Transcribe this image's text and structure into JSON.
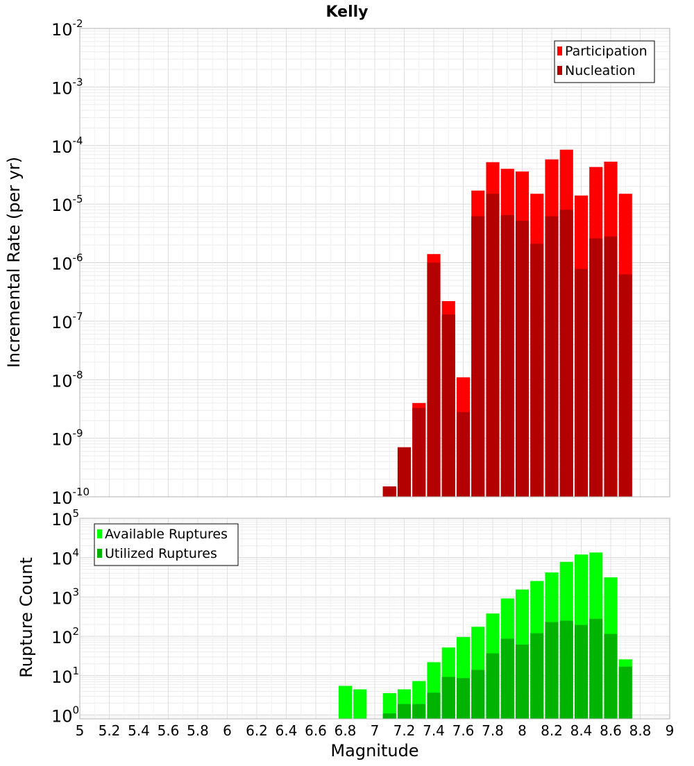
{
  "chart_data": [
    {
      "type": "bar",
      "title": "Kelly",
      "xlabel": "",
      "ylabel": "Incremental Rate (per yr)",
      "yscale": "log",
      "ylim": [
        1e-10,
        0.01
      ],
      "xlim": [
        5,
        9
      ],
      "grid": true,
      "legend_position": "top-right",
      "y_ticks": [
        {
          "base": "10",
          "exp": "-10"
        },
        {
          "base": "10",
          "exp": "-9"
        },
        {
          "base": "10",
          "exp": "-8"
        },
        {
          "base": "10",
          "exp": "-7"
        },
        {
          "base": "10",
          "exp": "-6"
        },
        {
          "base": "10",
          "exp": "-5"
        },
        {
          "base": "10",
          "exp": "-4"
        },
        {
          "base": "10",
          "exp": "-3"
        },
        {
          "base": "10",
          "exp": "-2"
        }
      ],
      "x": [
        7.1,
        7.2,
        7.3,
        7.4,
        7.5,
        7.6,
        7.7,
        7.8,
        7.9,
        8.0,
        8.1,
        8.2,
        8.3,
        8.4,
        8.5,
        8.6,
        8.7,
        8.8
      ],
      "series": [
        {
          "name": "Participation",
          "color": "#ff0000",
          "values": [
            1.5e-10,
            7e-10,
            4e-09,
            1.4e-06,
            2.2e-07,
            1.1e-08,
            1.7e-05,
            5.2e-05,
            4e-05,
            3.6e-05,
            1.5e-05,
            5.8e-05,
            8.5e-05,
            1.4e-05,
            4.3e-05,
            5.3e-05,
            1.5e-05,
            5e-11
          ]
        },
        {
          "name": "Nucleation",
          "color": "#b30000",
          "values": [
            1.5e-10,
            7e-10,
            3.3e-09,
            1e-06,
            1.3e-07,
            2.8e-09,
            6.2e-06,
            1.5e-05,
            6.5e-06,
            5.2e-06,
            2.1e-06,
            6.2e-06,
            8e-06,
            7.8e-07,
            2.6e-06,
            2.8e-06,
            6.3e-07,
            5e-11
          ]
        }
      ]
    },
    {
      "type": "bar",
      "title": "",
      "xlabel": "Magnitude",
      "ylabel": "Rupture Count",
      "yscale": "log",
      "ylim": [
        0.8,
        100000
      ],
      "xlim": [
        5,
        9
      ],
      "grid": true,
      "legend_position": "top-left",
      "y_ticks": [
        {
          "base": "10",
          "exp": "0",
          "value": 1
        },
        {
          "base": "10",
          "exp": "1",
          "value": 10
        },
        {
          "base": "10",
          "exp": "2",
          "value": 100
        },
        {
          "base": "10",
          "exp": "3",
          "value": 1000
        },
        {
          "base": "10",
          "exp": "4",
          "value": 10000
        },
        {
          "base": "10",
          "exp": "5",
          "value": 100000
        }
      ],
      "x_ticks": [
        "5",
        "5.2",
        "5.4",
        "5.6",
        "5.8",
        "6",
        "6.2",
        "6.4",
        "6.6",
        "6.8",
        "7",
        "7.2",
        "7.4",
        "7.6",
        "7.8",
        "8",
        "8.2",
        "8.4",
        "8.6",
        "8.8",
        "9"
      ],
      "x": [
        6.8,
        6.9,
        7.0,
        7.1,
        7.2,
        7.3,
        7.4,
        7.5,
        7.6,
        7.7,
        7.8,
        7.9,
        8.0,
        8.1,
        8.2,
        8.3,
        8.4,
        8.5,
        8.6,
        8.7,
        8.8
      ],
      "series": [
        {
          "name": "Available Ruptures",
          "color": "#00ff00",
          "values": [
            5.5,
            4.5,
            0,
            3.6,
            4.5,
            7.3,
            22,
            52,
            96,
            175,
            380,
            920,
            1550,
            2550,
            4200,
            7800,
            12000,
            13500,
            3150,
            26,
            0
          ]
        },
        {
          "name": "Utilized Ruptures",
          "color": "#00b300",
          "values": [
            0,
            0,
            0,
            1.1,
            1.9,
            1.9,
            3.7,
            9.3,
            8.7,
            14,
            37,
            87,
            62,
            120,
            230,
            250,
            195,
            280,
            115,
            17,
            0
          ]
        }
      ]
    }
  ]
}
